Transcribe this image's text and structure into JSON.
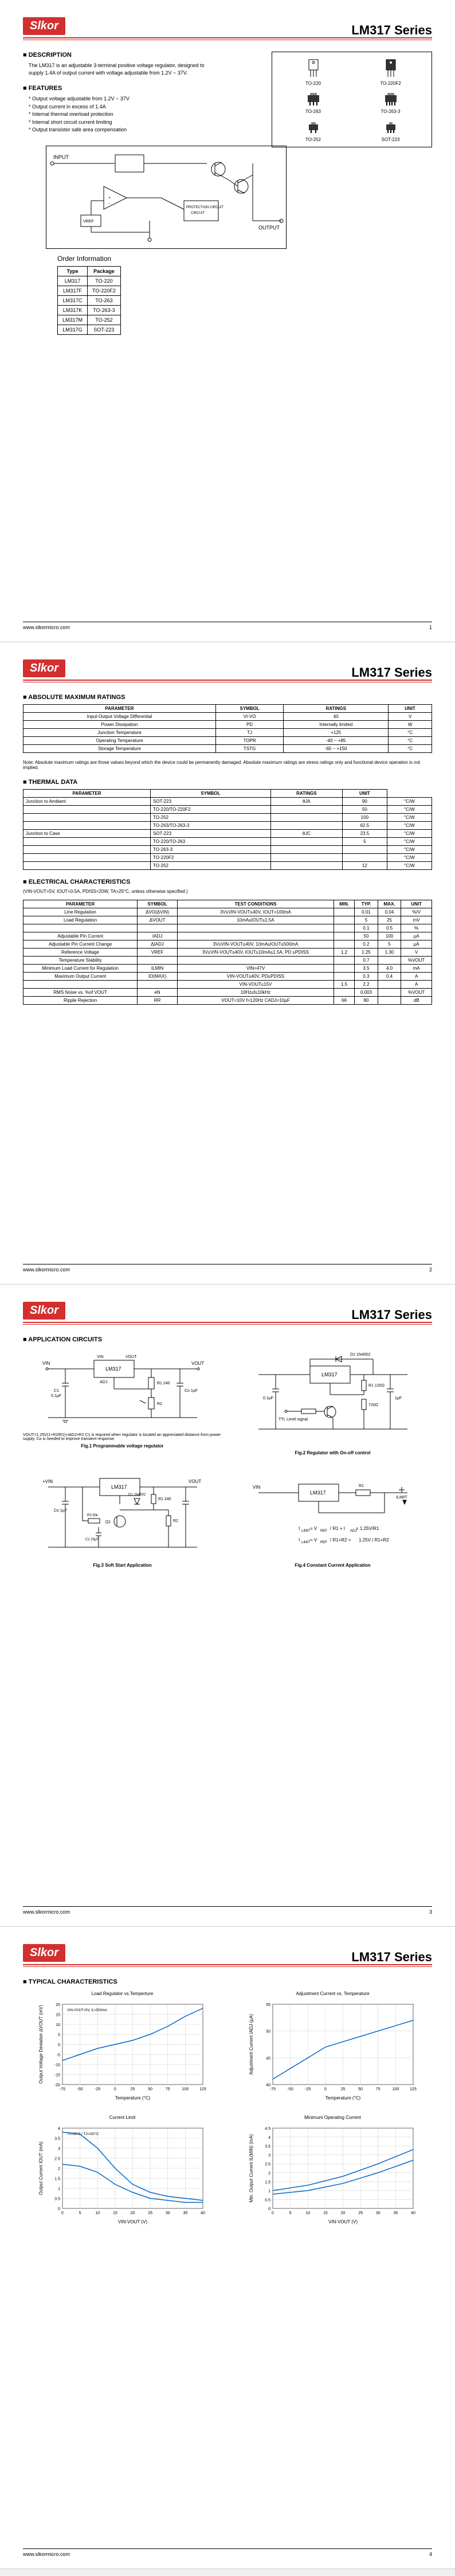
{
  "brand": "Slkor",
  "series": "LM317  Series",
  "footer_url": "www.slkormicro.com",
  "page1": {
    "description_hdr": "DESCRIPTION",
    "description_text": "The LM317 is an adjustable 3-terminal positive voltage regulator, designed to supply 1.4A of output current with voltage adjustable from 1.2V ~ 37V.",
    "features_hdr": "FEATURES",
    "features": [
      "Output voltage adjustable from 1.2V ~ 37V",
      "Output current in excess of 1.4A",
      "Internal thermal overload protection",
      "Internal short circuit current limiting",
      "Output transistor safe area compensation"
    ],
    "packages": [
      "TO-220",
      "TO-220F2",
      "TO-263",
      "TO-263-3",
      "TO-252",
      "SOT-223"
    ],
    "order_hdr": "Order Information",
    "order_cols": [
      "Type",
      "Package"
    ],
    "order_rows": [
      [
        "LM317",
        "TO-220"
      ],
      [
        "LM317F",
        "TO-220F2"
      ],
      [
        "LM317C",
        "TO-263"
      ],
      [
        "LM317K",
        "TO-263-3"
      ],
      [
        "LM317M",
        "TO-252"
      ],
      [
        "LM317G",
        "SOT-223"
      ]
    ],
    "schematic_labels": {
      "input": "INPUT",
      "output": "OUTPUT",
      "vref": "VREF",
      "prot": "PROTECTION CIRCUIT"
    },
    "page_num": "1"
  },
  "page2": {
    "abs_hdr": "ABSOLUTE MAXIMUM RATINGS",
    "abs_cols": [
      "PARAMETER",
      "SYMBOL",
      "RATINGS",
      "UNIT"
    ],
    "abs_rows": [
      [
        "Input-Output Voltage Differential",
        "VI-VO",
        "40",
        "V"
      ],
      [
        "Power Dissipation",
        "PD",
        "Internally limited",
        "W"
      ],
      [
        "Junction Temperature",
        "TJ",
        "+125",
        "°C"
      ],
      [
        "Operating Temperature",
        "TOPR",
        "-40 ~ +85",
        "°C"
      ],
      [
        "Storage Temperature",
        "TSTG",
        "-65 ~ +150",
        "°C"
      ]
    ],
    "abs_note": "Note: Absolute maximum ratings are those values beyond which the device could be permanently damaged. Absolute maximum ratings are stress ratings only and functional device operation is not implied.",
    "thermal_hdr": "THERMAL DATA",
    "thermal_cols": [
      "PARAMETER",
      "SYMBOL",
      "RATINGS",
      "UNIT"
    ],
    "thermal_rows": [
      [
        "Junction to Ambient",
        "SOT-223",
        "θJA",
        "90",
        "°C/W"
      ],
      [
        "",
        "TO-220/TO-220F2",
        "",
        "50",
        "°C/W"
      ],
      [
        "",
        "TO-252",
        "",
        "100",
        "°C/W"
      ],
      [
        "",
        "TO-263/TO-263-3",
        "",
        "62.5",
        "°C/W"
      ],
      [
        "Junction to Case",
        "SOT-223",
        "θJC",
        "23.5",
        "°C/W"
      ],
      [
        "",
        "TO-220/TO-263",
        "",
        "5",
        "°C/W"
      ],
      [
        "",
        "TO-263-3",
        "",
        "",
        "°C/W"
      ],
      [
        "",
        "TO-220F2",
        "",
        "",
        "°C/W"
      ],
      [
        "",
        "TO-252",
        "",
        "12",
        "°C/W"
      ]
    ],
    "elec_hdr": "ELECTRICAL CHARACTERISTICS",
    "elec_cond": "(VIN-VOUT=5V, IOUT=0.5A, PDISS<20W, TA=25°C, unless otherwise specified.)",
    "elec_cols": [
      "PARAMETER",
      "SYMBOL",
      "TEST CONDITIONS",
      "MIN.",
      "TYP.",
      "MAX.",
      "UNIT"
    ],
    "elec_rows": [
      [
        "Line Regulation",
        "ΔVO(ΔVIN)",
        "3V≤VIN-VOUT≤40V, IOUT=100mA",
        "",
        "0.01",
        "0.04",
        "%/V"
      ],
      [
        "Load Regulation",
        "ΔVOUT",
        "10mA≤IOUT≤1.5A",
        "",
        "5",
        "25",
        "mV"
      ],
      [
        "",
        "",
        "",
        "",
        "0.1",
        "0.5",
        "%"
      ],
      [
        "Adjustable Pin Current",
        "IADJ",
        "",
        "",
        "50",
        "100",
        "µA"
      ],
      [
        "Adjustable Pin Current Change",
        "ΔIADJ",
        "3V≤VIN-VOUT≤40V, 10mA≤IOUT≤500mA",
        "",
        "0.2",
        "5",
        "µA"
      ],
      [
        "Reference Voltage",
        "VREF",
        "3V≤VIN-VOUT≤40V, IOUT≤10mA≤1.5A, PD ≤PDISS",
        "1.2",
        "1.25",
        "1.30",
        "V"
      ],
      [
        "Temperature Stability",
        "",
        "",
        "",
        "0.7",
        "",
        "%VOUT"
      ],
      [
        "Minimum Load Current for Regulation",
        "ILMIN",
        "VIN=47V",
        "",
        "3.5",
        "4.0",
        "mA"
      ],
      [
        "Maximum Output Current",
        "IO(MAX)",
        "VIN-VOUT≤40V, PD≤PDISS",
        "",
        "0.3",
        "0.4",
        "A"
      ],
      [
        "",
        "",
        "VIN-VOUT≤15V",
        "1.5",
        "2.2",
        "",
        "A"
      ],
      [
        "RMS Noise vs. %of VOUT",
        "eN",
        "10Hz≤f≤10kHz",
        "",
        "0.003",
        "",
        "%VOUT"
      ],
      [
        "Ripple Rejection",
        "RR",
        "VOUT=10V f=120Hz CADJ=10µF",
        "66",
        "80",
        "",
        "dB"
      ]
    ],
    "page_num": "2"
  },
  "page3": {
    "app_hdr": "APPLICATION CIRCUITS",
    "fig1": "Fig.1 Programmable voltage regulator",
    "fig1_note": "VOUT=1.25V(1+R2/R1)+IADJ×R2\nC1 is required when regulator is located an appreciated distance from power supply. Co is needed to improve transient response.",
    "fig2": "Fig.2 Regulator with On-off control",
    "fig3": "Fig.3 Soft Start Application",
    "fig4": "Fig.4 Constant Current Application",
    "page_num": "3"
  },
  "page4": {
    "typ_hdr": "TYPICAL CHARACTERISTICS",
    "chart1": {
      "title": "Load Regulator vs.Temperture",
      "xlabel": "Temperature (°C)",
      "ylabel": "Output Voltage Deviation ∆VOUT (mV)",
      "xlim": [
        -75,
        125
      ],
      "ylim": [
        -20,
        20
      ],
      "xticks": [
        -75,
        -50,
        -25,
        0,
        25,
        50,
        75,
        100,
        125
      ],
      "yticks": [
        -20,
        -15,
        -10,
        -5,
        0,
        5,
        10,
        15,
        20
      ],
      "cond": "VIN-VOUT=5V, IL=500mA",
      "series": {
        "color": "#0066cc",
        "points": [
          [
            -75,
            -8
          ],
          [
            -50,
            -5
          ],
          [
            -25,
            -2
          ],
          [
            0,
            0
          ],
          [
            25,
            2
          ],
          [
            50,
            5
          ],
          [
            75,
            9
          ],
          [
            100,
            14
          ],
          [
            125,
            18
          ]
        ]
      }
    },
    "chart2": {
      "title": "Adjustment Current vs. Temperature",
      "xlabel": "Temperature (°C)",
      "ylabel": "Adjustment Current IADJ (µA)",
      "xlim": [
        -75,
        125
      ],
      "ylim": [
        40,
        55
      ],
      "xticks": [
        -75,
        -50,
        -25,
        0,
        25,
        50,
        75,
        100,
        125
      ],
      "yticks": [
        40,
        45,
        50,
        55
      ],
      "series": {
        "color": "#0066cc",
        "points": [
          [
            -75,
            41
          ],
          [
            -50,
            43
          ],
          [
            -25,
            45
          ],
          [
            0,
            47
          ],
          [
            25,
            48
          ],
          [
            50,
            49
          ],
          [
            75,
            50
          ],
          [
            100,
            51
          ],
          [
            125,
            52
          ]
        ]
      }
    },
    "chart3": {
      "title": "Current Limit",
      "xlabel": "VIN-VOUT (V)",
      "ylabel": "Output Current IOUT (mA)",
      "xlim": [
        0,
        40
      ],
      "ylim": [
        0,
        4.0
      ],
      "xticks": [
        0,
        5,
        10,
        15,
        20,
        25,
        30,
        35,
        40
      ],
      "yticks": [
        0,
        0.5,
        1.0,
        1.5,
        2.0,
        2.5,
        3.0,
        3.5,
        4.0
      ],
      "cond": "TJ=25°C / TJ=150°C",
      "series": [
        {
          "color": "#0066cc",
          "points": [
            [
              0,
              3.8
            ],
            [
              5,
              3.7
            ],
            [
              10,
              3.0
            ],
            [
              15,
              2.0
            ],
            [
              20,
              1.2
            ],
            [
              25,
              0.8
            ],
            [
              30,
              0.6
            ],
            [
              35,
              0.5
            ],
            [
              40,
              0.4
            ]
          ]
        },
        {
          "color": "#0066cc",
          "points": [
            [
              0,
              2.2
            ],
            [
              5,
              2.1
            ],
            [
              10,
              1.8
            ],
            [
              15,
              1.2
            ],
            [
              20,
              0.8
            ],
            [
              25,
              0.5
            ],
            [
              30,
              0.4
            ],
            [
              35,
              0.3
            ],
            [
              40,
              0.3
            ]
          ]
        }
      ]
    },
    "chart4": {
      "title": "Minimum Operating Current",
      "xlabel": "VIN-VOUT (V)",
      "ylabel": "Min. Output Current IL(MIN) (mA)",
      "xlim": [
        0,
        40
      ],
      "ylim": [
        0,
        4.5
      ],
      "xticks": [
        0,
        5,
        10,
        15,
        20,
        25,
        30,
        35,
        40
      ],
      "yticks": [
        0,
        0.5,
        1.0,
        1.5,
        2.0,
        2.5,
        3.0,
        3.5,
        4.0,
        4.5
      ],
      "series": [
        {
          "color": "#0066cc",
          "label": "TJ=25°C",
          "points": [
            [
              0,
              1.0
            ],
            [
              10,
              1.3
            ],
            [
              20,
              1.8
            ],
            [
              30,
              2.5
            ],
            [
              40,
              3.3
            ]
          ]
        },
        {
          "color": "#0066cc",
          "label": "TJ=150°C",
          "points": [
            [
              0,
              0.8
            ],
            [
              10,
              1.0
            ],
            [
              20,
              1.4
            ],
            [
              30,
              2.0
            ],
            [
              40,
              2.7
            ]
          ]
        }
      ]
    },
    "page_num": "4"
  },
  "colors": {
    "brand": "#d32f2f",
    "line": "#0066cc",
    "grid": "#888"
  }
}
